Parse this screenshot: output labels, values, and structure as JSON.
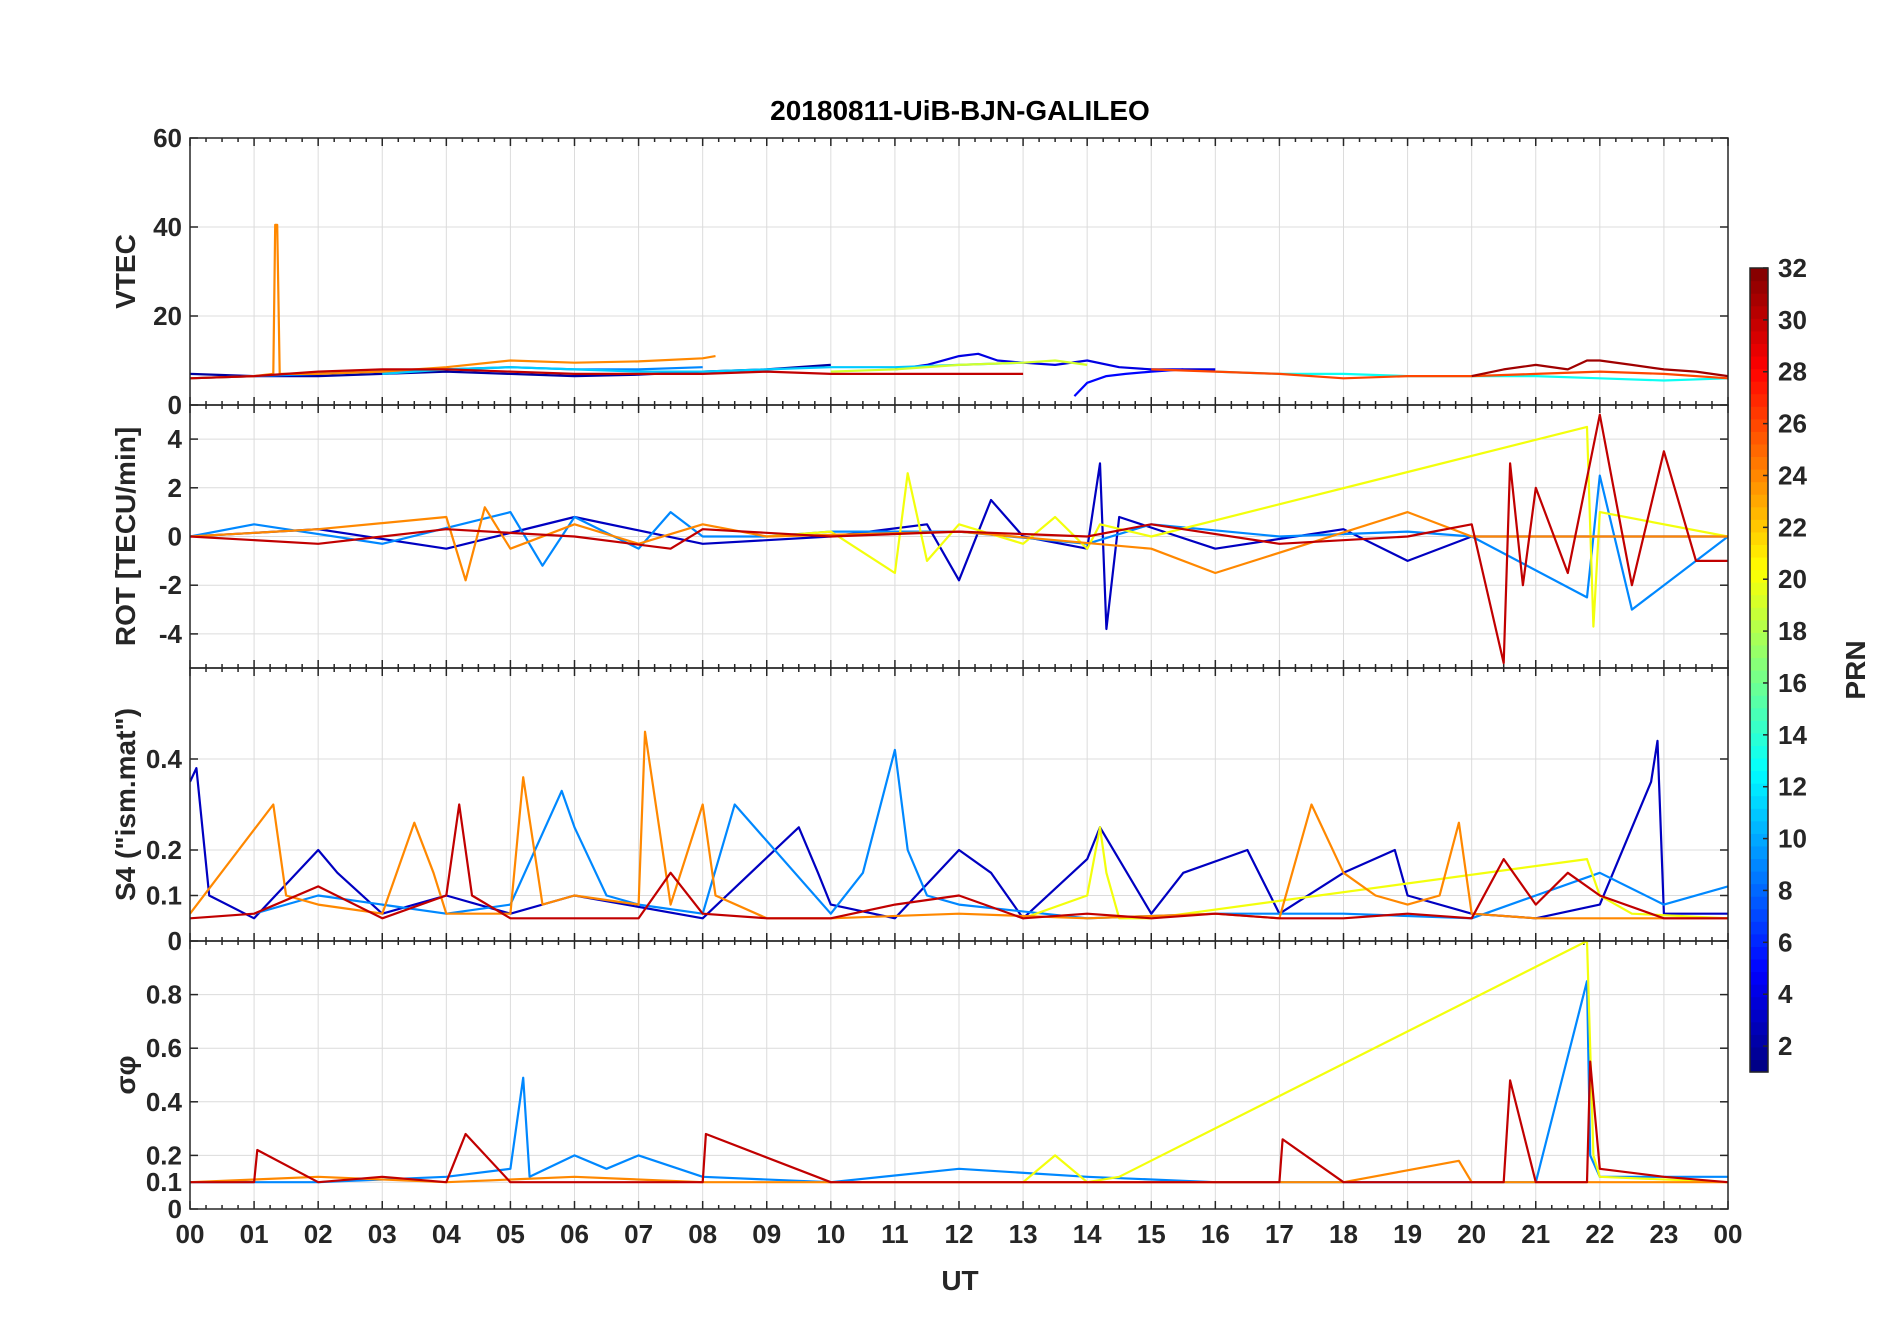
{
  "title": "20180811-UiB-BJN-GALILEO",
  "xlabel": "UT",
  "x_ticks": [
    "00",
    "01",
    "02",
    "03",
    "04",
    "05",
    "06",
    "07",
    "08",
    "09",
    "10",
    "11",
    "12",
    "13",
    "14",
    "15",
    "16",
    "17",
    "18",
    "19",
    "20",
    "21",
    "22",
    "23",
    "00"
  ],
  "colorbar": {
    "label": "PRN",
    "range": [
      1,
      32
    ],
    "ticks": [
      2,
      4,
      6,
      8,
      10,
      12,
      14,
      16,
      18,
      20,
      22,
      24,
      26,
      28,
      30,
      32
    ],
    "colormap": "jet"
  },
  "chart_data": [
    {
      "type": "line",
      "name": "vtec-panel",
      "ylabel": "VTEC",
      "ylim": [
        0,
        60
      ],
      "yticks": [
        0,
        20,
        40,
        60
      ],
      "xlim": [
        0,
        24
      ],
      "series": [
        {
          "prn": 2,
          "x": [
            0,
            1,
            2,
            3,
            4,
            5,
            6,
            7,
            8,
            9,
            10
          ],
          "y": [
            7,
            6.5,
            6.5,
            7,
            7.5,
            7,
            6.5,
            6.8,
            7.5,
            8,
            9
          ]
        },
        {
          "prn": 4,
          "x": [
            11,
            11.5,
            12,
            12.3,
            12.6,
            13,
            13.5,
            14,
            14.5,
            15,
            15.5,
            16
          ],
          "y": [
            8,
            9,
            11,
            11.5,
            10,
            9.5,
            9,
            10,
            8.5,
            8,
            8,
            8
          ]
        },
        {
          "prn": 5,
          "x": [
            13.8,
            14,
            14.3,
            14.6,
            15,
            15.5
          ],
          "y": [
            2,
            5,
            6.5,
            7,
            7.5,
            8
          ]
        },
        {
          "prn": 9,
          "x": [
            0,
            1,
            2,
            3,
            4,
            5,
            6,
            7,
            8
          ],
          "y": [
            6,
            6.5,
            7,
            7.5,
            8,
            8.5,
            8,
            8,
            8.5
          ]
        },
        {
          "prn": 11,
          "x": [
            3,
            4,
            5,
            6,
            7,
            8,
            9,
            10,
            11,
            12,
            13
          ],
          "y": [
            7,
            8,
            8.5,
            8,
            7.5,
            7.5,
            8,
            8.5,
            8.5,
            9,
            9.5
          ]
        },
        {
          "prn": 13,
          "x": [
            16,
            17,
            18,
            19,
            20,
            21,
            22,
            23,
            24
          ],
          "y": [
            7.5,
            7,
            7,
            6.5,
            6.5,
            6.5,
            6,
            5.5,
            6
          ]
        },
        {
          "prn": 19,
          "x": [
            10,
            11,
            12,
            13,
            13.5,
            14
          ],
          "y": [
            7.5,
            8,
            9,
            9.5,
            10,
            9
          ]
        },
        {
          "prn": 24,
          "x": [
            0,
            1,
            1.3,
            1.33,
            1.36,
            1.4,
            2,
            3,
            4,
            5,
            6,
            7,
            8,
            8.2
          ],
          "y": [
            6,
            6.5,
            7,
            40.5,
            40.5,
            7,
            7,
            7.5,
            8.5,
            10,
            9.5,
            9.8,
            10.5,
            11
          ]
        },
        {
          "prn": 26,
          "x": [
            15,
            16,
            17,
            18,
            19,
            20,
            21,
            22,
            23,
            24
          ],
          "y": [
            8,
            7.5,
            7,
            6,
            6.5,
            6.5,
            7,
            7.5,
            7,
            6
          ]
        },
        {
          "prn": 30,
          "x": [
            0,
            1,
            2,
            3,
            4,
            5,
            6,
            7,
            8,
            9,
            10,
            11,
            12,
            13
          ],
          "y": [
            6,
            6.5,
            7.5,
            8,
            8,
            7.5,
            7,
            7,
            7,
            7.5,
            7,
            7,
            7,
            7
          ]
        },
        {
          "prn": 31,
          "x": [
            20,
            20.5,
            21,
            21.5,
            21.8,
            22,
            22.5,
            23,
            23.5,
            24
          ],
          "y": [
            6.5,
            8,
            9,
            8,
            10,
            10,
            9,
            8,
            7.5,
            6.5
          ]
        }
      ]
    },
    {
      "type": "line",
      "name": "rot-panel",
      "ylabel": "ROT [TECU/min]",
      "ylim": [
        -5.4,
        5.4
      ],
      "yticks": [
        -4,
        -2,
        0,
        2,
        4
      ],
      "xlim": [
        0,
        24
      ],
      "series": [
        {
          "prn": 3,
          "x": [
            0,
            2,
            4,
            6,
            8,
            10,
            11.5,
            12,
            12.5,
            13,
            14,
            14.2,
            14.3,
            14.5,
            16,
            18,
            19,
            20,
            24
          ],
          "y": [
            0,
            0.3,
            -0.5,
            0.8,
            -0.3,
            0,
            0.5,
            -1.8,
            1.5,
            0,
            -0.5,
            3,
            -3.8,
            0.8,
            -0.5,
            0.3,
            -1,
            0,
            0
          ]
        },
        {
          "prn": 9,
          "x": [
            0,
            1,
            3,
            5,
            5.5,
            6,
            7,
            7.5,
            8,
            9,
            10,
            12,
            14,
            15,
            17,
            19,
            20,
            21.8,
            22,
            22.5,
            24
          ],
          "y": [
            0,
            0.5,
            -0.3,
            1,
            -1.2,
            0.8,
            -0.5,
            1,
            0,
            0,
            0.2,
            0.2,
            -0.3,
            0.5,
            0,
            0.2,
            0,
            -2.5,
            2.5,
            -3,
            0
          ]
        },
        {
          "prn": 20,
          "x": [
            9,
            10,
            11,
            11.2,
            11.5,
            12,
            13,
            13.5,
            14,
            14.2,
            15,
            21.8,
            21.9,
            22,
            24
          ],
          "y": [
            0,
            0.2,
            -1.5,
            2.6,
            -1,
            0.5,
            -0.3,
            0.8,
            -0.5,
            0.5,
            0,
            4.5,
            -3.7,
            1,
            0
          ]
        },
        {
          "prn": 24,
          "x": [
            0,
            2,
            4,
            4.3,
            4.6,
            5,
            6,
            7,
            8,
            9,
            12,
            15,
            16,
            19,
            20,
            24
          ],
          "y": [
            0,
            0.3,
            0.8,
            -1.8,
            1.2,
            -0.5,
            0.5,
            -0.3,
            0.5,
            0,
            0.2,
            -0.5,
            -1.5,
            1,
            0,
            0
          ]
        },
        {
          "prn": 30,
          "x": [
            0,
            2,
            4,
            6,
            7.5,
            8,
            10,
            12,
            14,
            15,
            17,
            19,
            20,
            20.5,
            20.6,
            20.8,
            21,
            21.5,
            22,
            22.5,
            23,
            23.5,
            24
          ],
          "y": [
            0,
            -0.3,
            0.3,
            0,
            -0.5,
            0.3,
            0,
            0.2,
            0,
            0.5,
            -0.3,
            0,
            0.5,
            -5.2,
            3,
            -2,
            2,
            -1.5,
            5,
            -2,
            3.5,
            -1,
            -1
          ]
        }
      ]
    },
    {
      "type": "line",
      "name": "s4-panel",
      "ylabel": "S4 (\"ism.mat\")",
      "ylim": [
        0,
        0.6
      ],
      "yticks": [
        0,
        0.1,
        0.2,
        0.4
      ],
      "xlim": [
        0,
        24
      ],
      "series": [
        {
          "prn": 3,
          "x": [
            0,
            0.1,
            0.3,
            1,
            2,
            2.3,
            3,
            4,
            5,
            6,
            8,
            9.5,
            9.8,
            10,
            11,
            12,
            12.5,
            13,
            14,
            14.2,
            15,
            15.5,
            16.5,
            17,
            18,
            18.8,
            19,
            20,
            21,
            22,
            22.8,
            22.9,
            23,
            24
          ],
          "y": [
            0.35,
            0.38,
            0.1,
            0.05,
            0.2,
            0.15,
            0.06,
            0.1,
            0.06,
            0.1,
            0.05,
            0.25,
            0.15,
            0.08,
            0.05,
            0.2,
            0.15,
            0.05,
            0.18,
            0.25,
            0.06,
            0.15,
            0.2,
            0.06,
            0.15,
            0.2,
            0.1,
            0.06,
            0.05,
            0.08,
            0.35,
            0.44,
            0.06,
            0.06
          ]
        },
        {
          "prn": 9,
          "x": [
            1,
            2,
            3,
            4,
            5,
            5.8,
            6,
            6.5,
            7,
            8,
            8.5,
            10,
            10.5,
            11,
            11.2,
            11.5,
            12,
            14,
            16,
            18,
            20,
            21,
            22,
            23,
            24
          ],
          "y": [
            0.06,
            0.1,
            0.08,
            0.06,
            0.08,
            0.33,
            0.25,
            0.1,
            0.08,
            0.06,
            0.3,
            0.06,
            0.15,
            0.42,
            0.2,
            0.1,
            0.08,
            0.05,
            0.06,
            0.06,
            0.05,
            0.1,
            0.15,
            0.08,
            0.12
          ]
        },
        {
          "prn": 20,
          "x": [
            13,
            14,
            14.2,
            14.3,
            14.5,
            15,
            21.8,
            22,
            22.5,
            24
          ],
          "y": [
            0.05,
            0.1,
            0.25,
            0.15,
            0.05,
            0.05,
            0.18,
            0.1,
            0.06,
            0.05
          ]
        },
        {
          "prn": 24,
          "x": [
            0,
            1.3,
            1.5,
            2,
            3,
            3.5,
            3.8,
            4,
            5,
            5.2,
            5.5,
            6,
            7,
            7.1,
            7.5,
            8,
            8.2,
            9,
            10,
            12,
            14,
            16,
            17,
            17.5,
            18,
            18.5,
            19,
            19.5,
            19.8,
            20,
            21,
            22,
            24
          ],
          "y": [
            0.06,
            0.3,
            0.1,
            0.08,
            0.06,
            0.26,
            0.15,
            0.06,
            0.06,
            0.36,
            0.08,
            0.1,
            0.08,
            0.46,
            0.08,
            0.3,
            0.1,
            0.05,
            0.05,
            0.06,
            0.05,
            0.06,
            0.05,
            0.3,
            0.15,
            0.1,
            0.08,
            0.1,
            0.26,
            0.06,
            0.05,
            0.05,
            0.05
          ]
        },
        {
          "prn": 30,
          "x": [
            0,
            1,
            2,
            3,
            4,
            4.2,
            4.4,
            5,
            6,
            7,
            7.5,
            8,
            9,
            10,
            11,
            12,
            13,
            14,
            15,
            16,
            17,
            18,
            19,
            20,
            20.5,
            21,
            21.5,
            22,
            23,
            24
          ],
          "y": [
            0.05,
            0.06,
            0.12,
            0.05,
            0.1,
            0.3,
            0.1,
            0.05,
            0.05,
            0.05,
            0.15,
            0.06,
            0.05,
            0.05,
            0.08,
            0.1,
            0.05,
            0.06,
            0.05,
            0.06,
            0.05,
            0.05,
            0.06,
            0.05,
            0.18,
            0.08,
            0.15,
            0.1,
            0.05,
            0.05
          ]
        }
      ]
    },
    {
      "type": "line",
      "name": "sigma-phi-panel",
      "ylabel": "σφ",
      "ylim": [
        0,
        1
      ],
      "yticks": [
        0,
        0.1,
        0.2,
        0.4,
        0.6,
        0.8
      ],
      "xlim": [
        0,
        24
      ],
      "series": [
        {
          "prn": 9,
          "x": [
            0,
            2,
            4,
            5,
            5.2,
            5.3,
            6,
            6.5,
            7,
            8,
            10,
            12,
            14,
            16,
            18,
            20,
            21,
            21.8,
            21.85,
            22,
            24
          ],
          "y": [
            0.1,
            0.1,
            0.12,
            0.15,
            0.49,
            0.12,
            0.2,
            0.15,
            0.2,
            0.12,
            0.1,
            0.15,
            0.12,
            0.1,
            0.1,
            0.1,
            0.1,
            0.85,
            0.2,
            0.12,
            0.12
          ]
        },
        {
          "prn": 20,
          "x": [
            13,
            13.5,
            14,
            14.5,
            21.8,
            21.9,
            22,
            24
          ],
          "y": [
            0.1,
            0.2,
            0.1,
            0.12,
            1.0,
            0.2,
            0.12,
            0.1
          ]
        },
        {
          "prn": 24,
          "x": [
            0,
            2,
            4,
            6,
            8,
            10,
            12,
            14,
            16,
            18,
            19.8,
            20,
            22,
            24
          ],
          "y": [
            0.1,
            0.12,
            0.1,
            0.12,
            0.1,
            0.1,
            0.1,
            0.1,
            0.1,
            0.1,
            0.18,
            0.1,
            0.1,
            0.1
          ]
        },
        {
          "prn": 30,
          "x": [
            0,
            1,
            1.05,
            2,
            3,
            4,
            4.3,
            5,
            6,
            7,
            8,
            8.05,
            10,
            12,
            14,
            16,
            17,
            17.05,
            18,
            20,
            20.5,
            20.6,
            21,
            21.8,
            21.85,
            22,
            23,
            24
          ],
          "y": [
            0.1,
            0.1,
            0.22,
            0.1,
            0.12,
            0.1,
            0.28,
            0.1,
            0.1,
            0.1,
            0.1,
            0.28,
            0.1,
            0.1,
            0.1,
            0.1,
            0.1,
            0.26,
            0.1,
            0.1,
            0.1,
            0.48,
            0.1,
            0.1,
            0.55,
            0.15,
            0.12,
            0.1
          ]
        }
      ]
    }
  ]
}
